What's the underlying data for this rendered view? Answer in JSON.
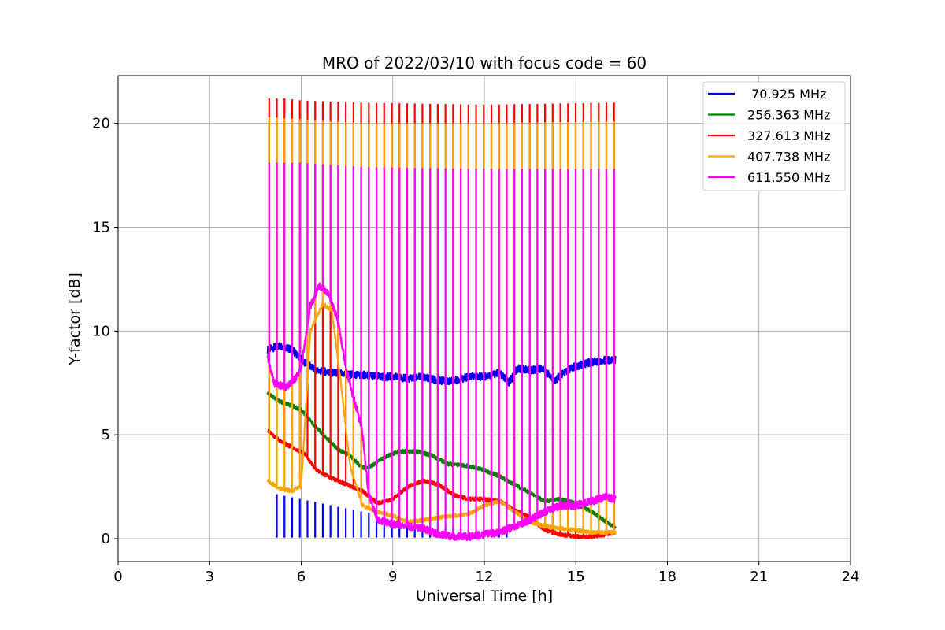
{
  "chart_data": {
    "type": "line",
    "title": "MRO of 2022/03/10 with focus code = 60",
    "xlabel": "Universal Time [h]",
    "ylabel": "Y-factor [dB]",
    "xlim": [
      0,
      24
    ],
    "ylim": [
      -1.1,
      22.3
    ],
    "xticks": [
      0,
      3,
      6,
      9,
      12,
      15,
      18,
      21,
      24
    ],
    "yticks": [
      0,
      5,
      10,
      15,
      20
    ],
    "grid": true,
    "legend_position": "top-right",
    "scan_start": 4.95,
    "scan_end": 16.25,
    "scan_count": 46,
    "series": [
      {
        "name": " 70.925 MHz",
        "color": "#0000ff",
        "baseline": [
          [
            4.9,
            9.1
          ],
          [
            5.3,
            9.3
          ],
          [
            5.7,
            9.1
          ],
          [
            6.1,
            8.5
          ],
          [
            6.5,
            8.1
          ],
          [
            7.0,
            8.0
          ],
          [
            7.5,
            7.9
          ],
          [
            8.0,
            7.9
          ],
          [
            8.5,
            7.8
          ],
          [
            9.0,
            7.8
          ],
          [
            9.5,
            7.7
          ],
          [
            10.0,
            7.8
          ],
          [
            10.5,
            7.6
          ],
          [
            11.0,
            7.6
          ],
          [
            11.5,
            7.8
          ],
          [
            12.0,
            7.8
          ],
          [
            12.5,
            8.0
          ],
          [
            12.8,
            7.5
          ],
          [
            13.1,
            8.2
          ],
          [
            13.5,
            8.1
          ],
          [
            13.9,
            8.2
          ],
          [
            14.3,
            7.6
          ],
          [
            14.6,
            8.0
          ],
          [
            15.0,
            8.3
          ],
          [
            15.5,
            8.5
          ],
          [
            16.0,
            8.6
          ],
          [
            16.3,
            8.6
          ]
        ],
        "spike_peak": [
          [
            5.0,
            2.2
          ],
          [
            8.0,
            1.3
          ],
          [
            12.0,
            0.3
          ],
          [
            16.2,
            0.2
          ]
        ],
        "spike_min": 0.05,
        "spike_start": 5.0,
        "spike_end": 12.8
      },
      {
        "name": "256.363 MHz",
        "color": "#008000",
        "baseline": [
          [
            4.9,
            7.0
          ],
          [
            5.3,
            6.6
          ],
          [
            5.7,
            6.4
          ],
          [
            6.0,
            6.2
          ],
          [
            6.4,
            5.5
          ],
          [
            6.8,
            4.9
          ],
          [
            7.2,
            4.3
          ],
          [
            7.6,
            4.0
          ],
          [
            8.0,
            3.4
          ],
          [
            8.3,
            3.5
          ],
          [
            8.7,
            3.9
          ],
          [
            9.2,
            4.2
          ],
          [
            9.8,
            4.2
          ],
          [
            10.3,
            4.0
          ],
          [
            10.8,
            3.6
          ],
          [
            11.5,
            3.5
          ],
          [
            12.0,
            3.3
          ],
          [
            12.5,
            3.0
          ],
          [
            13.0,
            2.6
          ],
          [
            13.5,
            2.2
          ],
          [
            14.0,
            1.8
          ],
          [
            14.5,
            1.9
          ],
          [
            15.0,
            1.7
          ],
          [
            15.5,
            1.3
          ],
          [
            16.0,
            0.8
          ],
          [
            16.3,
            0.5
          ]
        ]
      },
      {
        "name": "327.613 MHz",
        "color": "#ff0000",
        "baseline": [
          [
            4.9,
            5.2
          ],
          [
            5.3,
            4.7
          ],
          [
            5.7,
            4.4
          ],
          [
            6.1,
            4.1
          ],
          [
            6.5,
            3.3
          ],
          [
            7.0,
            2.9
          ],
          [
            7.5,
            2.6
          ],
          [
            8.0,
            2.3
          ],
          [
            8.5,
            1.7
          ],
          [
            9.0,
            1.9
          ],
          [
            9.5,
            2.5
          ],
          [
            10.0,
            2.8
          ],
          [
            10.5,
            2.6
          ],
          [
            11.0,
            2.1
          ],
          [
            11.5,
            1.9
          ],
          [
            12.0,
            1.9
          ],
          [
            12.5,
            1.8
          ],
          [
            13.0,
            1.4
          ],
          [
            13.5,
            1.0
          ],
          [
            14.0,
            0.4
          ],
          [
            14.5,
            0.2
          ],
          [
            15.0,
            0.1
          ],
          [
            15.5,
            0.1
          ],
          [
            16.0,
            0.2
          ],
          [
            16.3,
            0.3
          ]
        ],
        "spike_peak": [
          [
            4.95,
            21.2
          ],
          [
            5.5,
            21.2
          ],
          [
            6.0,
            21.1
          ],
          [
            8.0,
            21.0
          ],
          [
            12.0,
            20.9
          ],
          [
            16.25,
            21.0
          ]
        ]
      },
      {
        "name": "407.738 MHz",
        "color": "#ffa500",
        "baseline": [
          [
            4.9,
            2.8
          ],
          [
            5.3,
            2.4
          ],
          [
            5.7,
            2.3
          ],
          [
            6.0,
            2.5
          ],
          [
            6.3,
            10.0
          ],
          [
            6.7,
            11.3
          ],
          [
            7.0,
            11.0
          ],
          [
            7.3,
            7.5
          ],
          [
            7.6,
            3.5
          ],
          [
            8.0,
            1.6
          ],
          [
            8.5,
            1.3
          ],
          [
            9.0,
            1.1
          ],
          [
            9.5,
            0.8
          ],
          [
            10.0,
            0.9
          ],
          [
            10.5,
            1.0
          ],
          [
            11.0,
            1.1
          ],
          [
            11.5,
            1.2
          ],
          [
            12.0,
            1.6
          ],
          [
            12.5,
            1.8
          ],
          [
            13.0,
            1.3
          ],
          [
            13.5,
            0.8
          ],
          [
            14.0,
            0.6
          ],
          [
            14.5,
            0.5
          ],
          [
            15.0,
            0.4
          ],
          [
            15.5,
            0.3
          ],
          [
            16.0,
            0.3
          ],
          [
            16.3,
            0.3
          ]
        ],
        "spike_peak": [
          [
            4.95,
            20.3
          ],
          [
            6.0,
            20.2
          ],
          [
            8.0,
            20.0
          ],
          [
            12.0,
            20.0
          ],
          [
            16.25,
            20.1
          ]
        ]
      },
      {
        "name": "611.550 MHz",
        "color": "#ff00ff",
        "baseline": [
          [
            4.9,
            8.8
          ],
          [
            5.1,
            7.5
          ],
          [
            5.5,
            7.3
          ],
          [
            5.8,
            7.7
          ],
          [
            6.0,
            8.2
          ],
          [
            6.3,
            11.2
          ],
          [
            6.6,
            12.2
          ],
          [
            6.9,
            11.8
          ],
          [
            7.2,
            10.5
          ],
          [
            7.5,
            8.0
          ],
          [
            7.8,
            6.3
          ],
          [
            8.0,
            5.2
          ],
          [
            8.2,
            2.2
          ],
          [
            8.5,
            0.9
          ],
          [
            9.0,
            0.7
          ],
          [
            9.5,
            0.6
          ],
          [
            10.0,
            0.5
          ],
          [
            10.5,
            0.2
          ],
          [
            11.0,
            0.1
          ],
          [
            11.5,
            0.1
          ],
          [
            12.0,
            0.2
          ],
          [
            12.5,
            0.3
          ],
          [
            13.0,
            0.6
          ],
          [
            13.5,
            0.9
          ],
          [
            14.0,
            1.3
          ],
          [
            14.5,
            1.6
          ],
          [
            15.0,
            1.6
          ],
          [
            15.5,
            1.8
          ],
          [
            16.0,
            2.0
          ],
          [
            16.3,
            1.9
          ]
        ],
        "spike_peak": [
          [
            4.95,
            18.1
          ],
          [
            6.0,
            18.1
          ],
          [
            8.0,
            17.9
          ],
          [
            12.0,
            17.8
          ],
          [
            16.25,
            17.8
          ]
        ]
      }
    ]
  }
}
